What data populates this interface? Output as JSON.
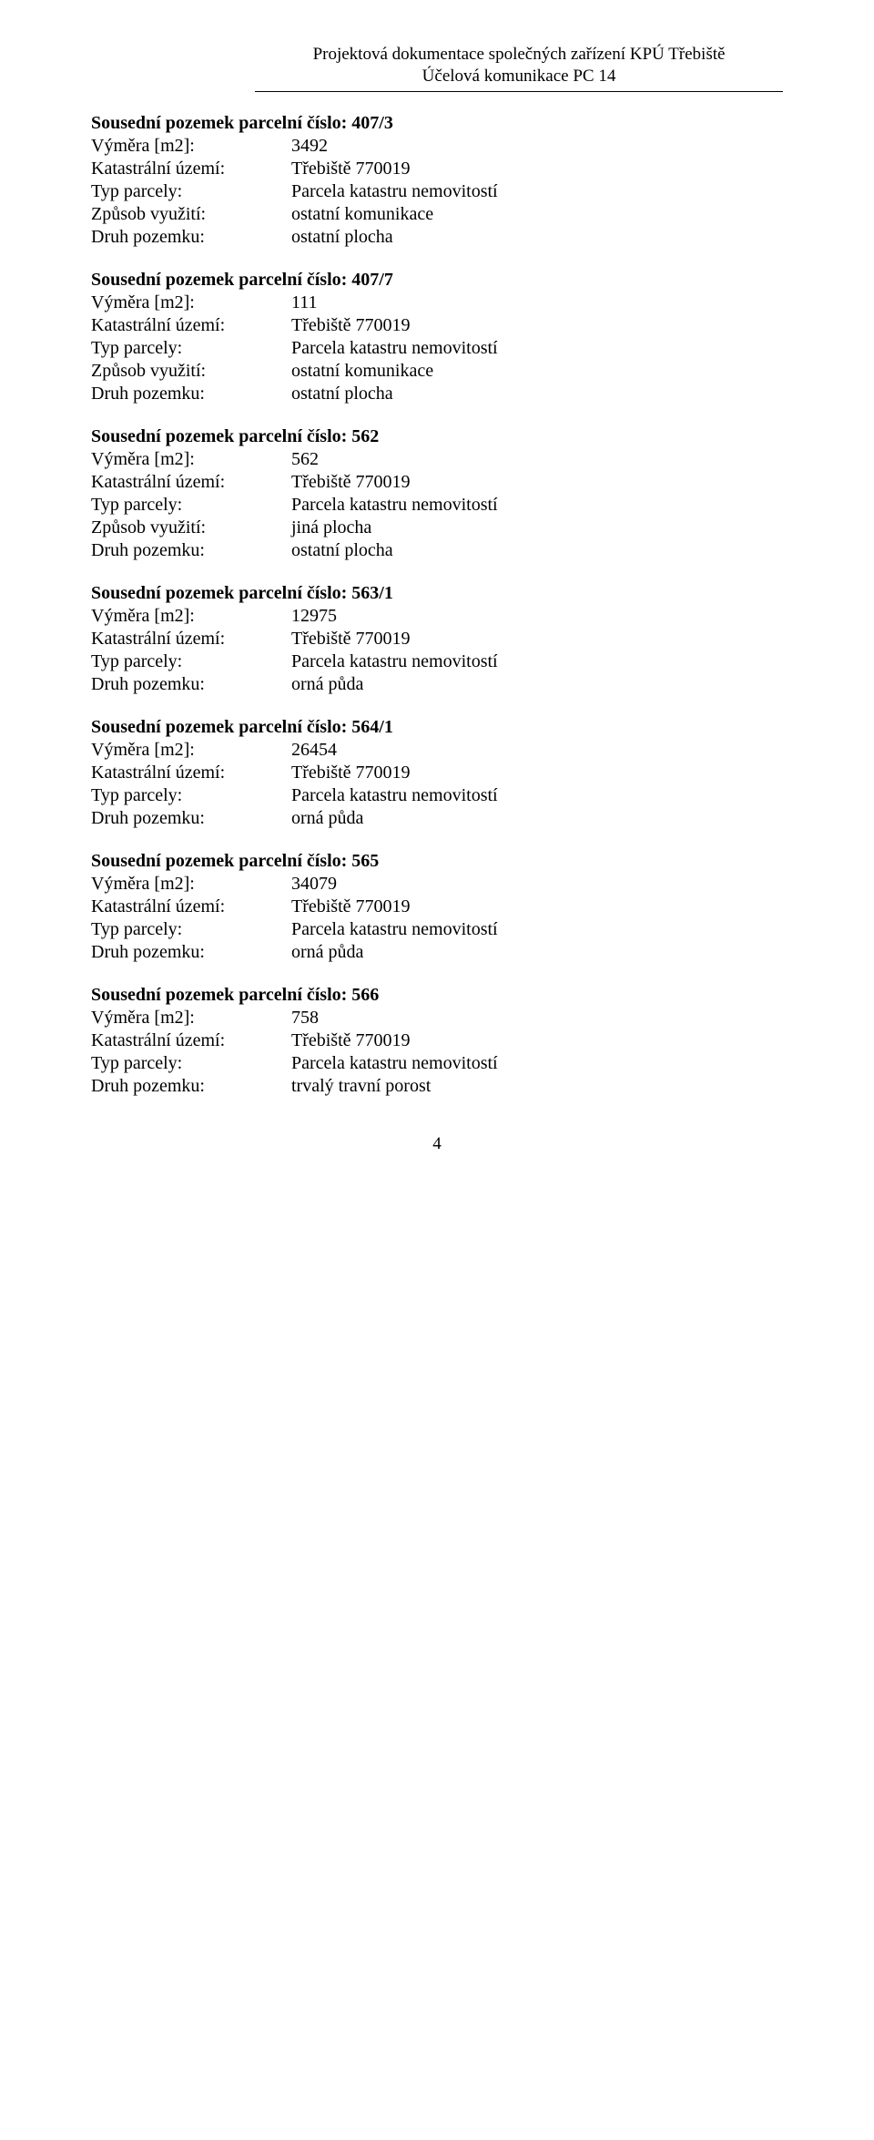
{
  "header": {
    "line1": "Projektová dokumentace společných zařízení KPÚ Třebiště",
    "line2": "Účelová komunikace PC 14"
  },
  "labels": {
    "title_prefix": "Sousední pozemek parcelní číslo:",
    "vymera": "Výměra [m2]:",
    "katastralni": "Katastrální území:",
    "typ_parcely": "Typ parcely:",
    "zpusob": "Způsob využití:",
    "druh": "Druh pozemku:"
  },
  "common": {
    "katastralni_value": "Třebiště 770019",
    "typ_parcely_value": "Parcela katastru nemovitostí"
  },
  "parcels": [
    {
      "cislo": "407/3",
      "vymera": "3492",
      "zpusob": "ostatní komunikace",
      "druh": "ostatní plocha",
      "show_zpusob": true
    },
    {
      "cislo": "407/7",
      "vymera": "111",
      "zpusob": "ostatní komunikace",
      "druh": "ostatní plocha",
      "show_zpusob": true
    },
    {
      "cislo": "562",
      "vymera": "562",
      "zpusob": "jiná plocha",
      "druh": "ostatní plocha",
      "show_zpusob": true
    },
    {
      "cislo": "563/1",
      "vymera": "12975",
      "druh": "orná půda",
      "show_zpusob": false
    },
    {
      "cislo": "564/1",
      "vymera": "26454",
      "druh": "orná půda",
      "show_zpusob": false
    },
    {
      "cislo": "565",
      "vymera": "34079",
      "druh": "orná půda",
      "show_zpusob": false
    },
    {
      "cislo": "566",
      "vymera": "758",
      "druh": "trvalý travní porost",
      "show_zpusob": false
    }
  ],
  "footer": {
    "page_number": "4"
  }
}
